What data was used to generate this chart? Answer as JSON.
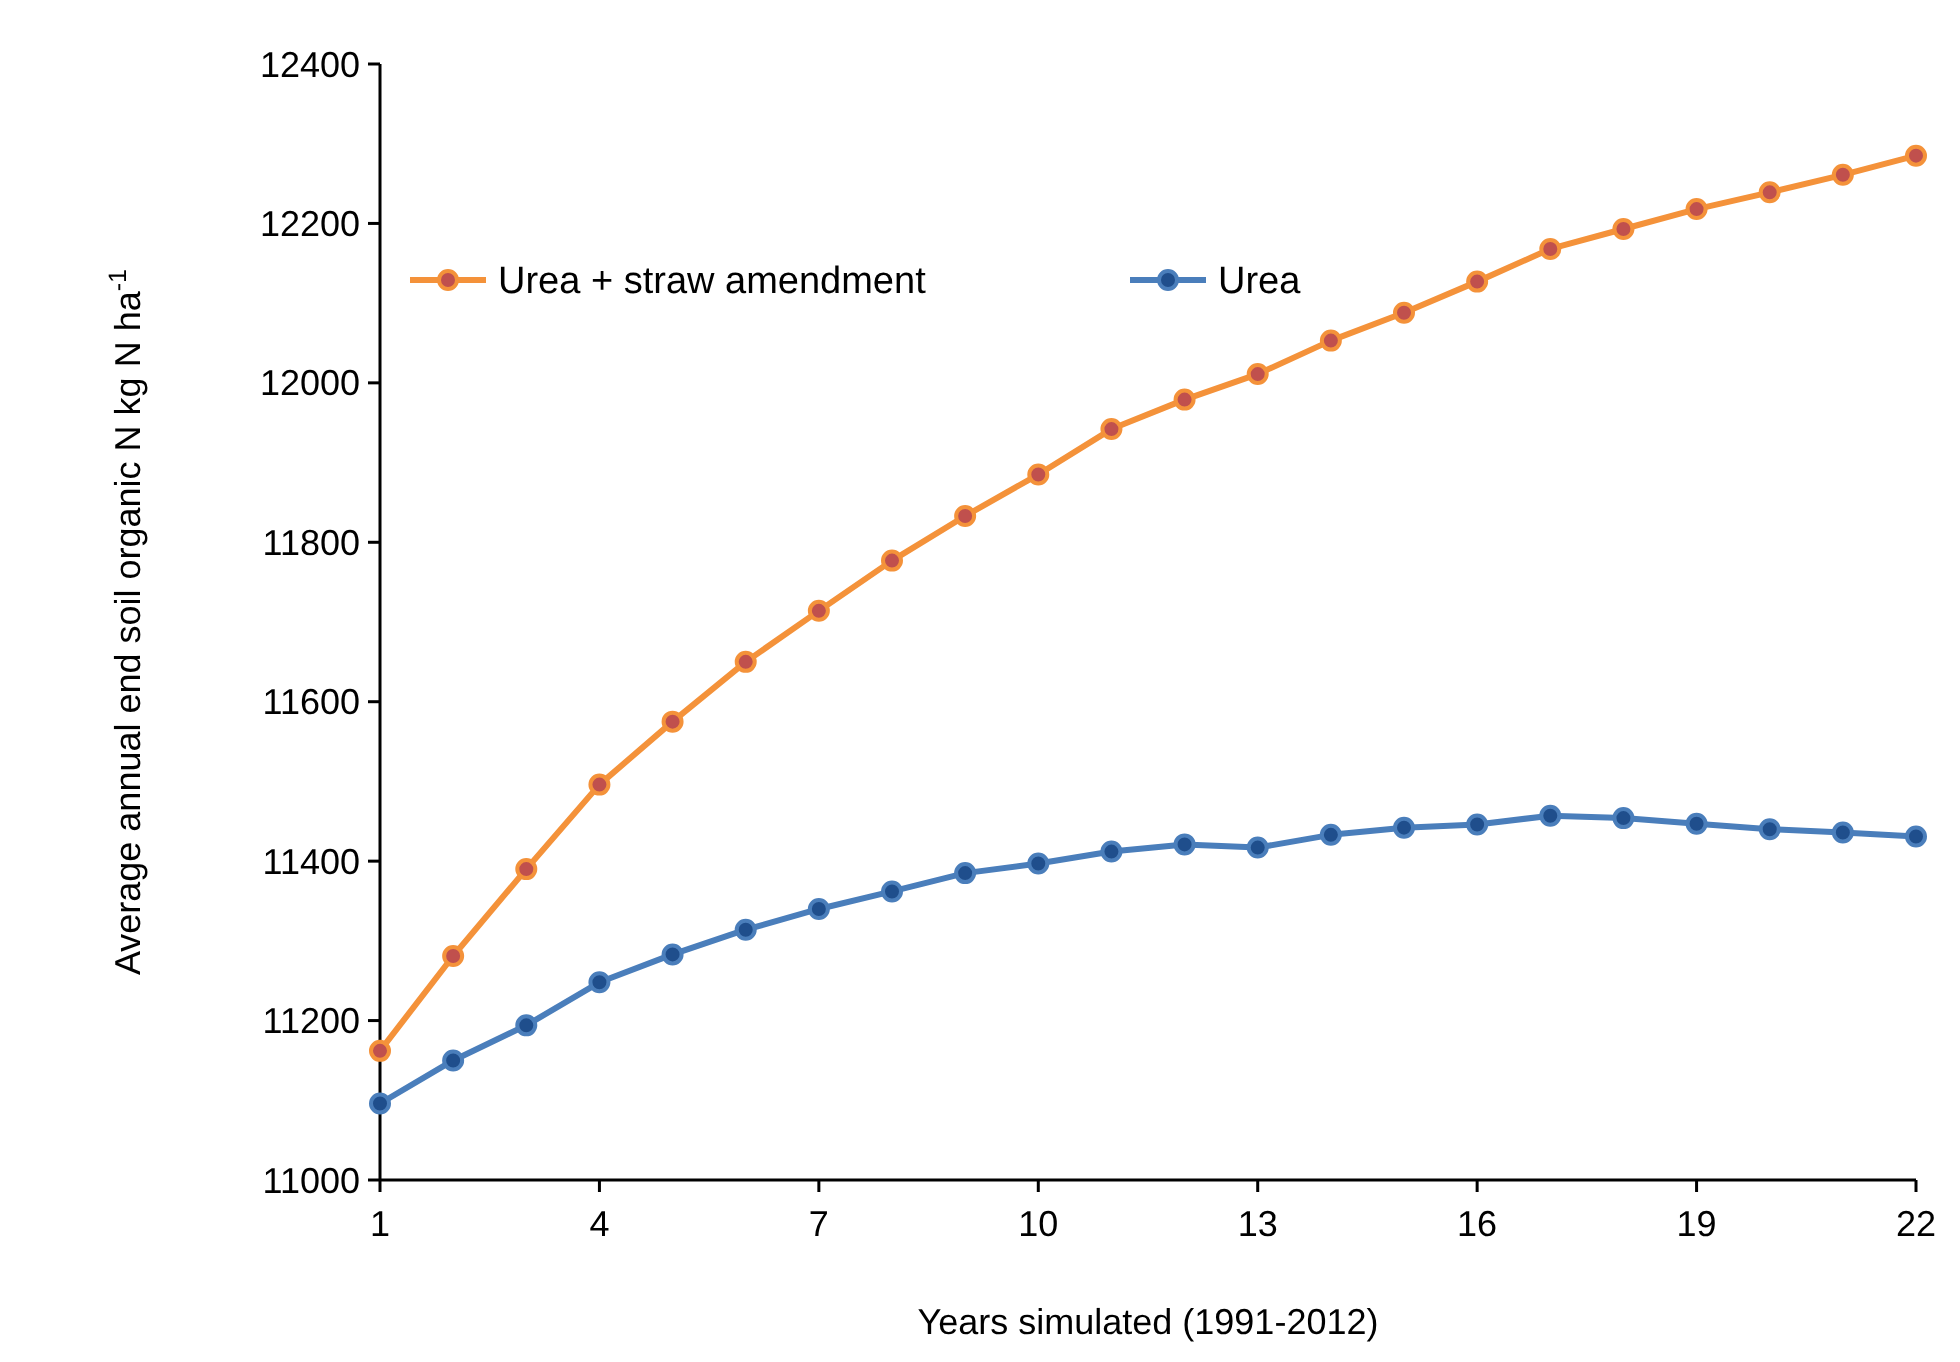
{
  "chart_data": {
    "type": "line",
    "xlabel": "Years simulated (1991-2012)",
    "ylabel": "Average annual end soil organic N kg N ha$^{-1}$",
    "x": [
      1,
      2,
      3,
      4,
      5,
      6,
      7,
      8,
      9,
      10,
      11,
      12,
      13,
      14,
      15,
      16,
      17,
      18,
      19,
      20,
      21,
      22
    ],
    "series": [
      {
        "name": "Urea + straw amendment",
        "color": "#f4923a",
        "values": [
          11162,
          11281,
          11390,
          11496,
          11575,
          11650,
          11714,
          11777,
          11833,
          11885,
          11942,
          11979,
          12011,
          12053,
          12088,
          12127,
          12168,
          12193,
          12218,
          12239,
          12261,
          12285
        ]
      },
      {
        "name": "Urea",
        "color": "#4a7ebb",
        "values": [
          11096,
          11150,
          11194,
          11248,
          11283,
          11314,
          11340,
          11362,
          11385,
          11397,
          11412,
          11421,
          11417,
          11433,
          11442,
          11446,
          11457,
          11454,
          11447,
          11440,
          11436,
          11431
        ]
      }
    ],
    "xlim": [
      1,
      22
    ],
    "xticks": [
      1,
      4,
      7,
      10,
      13,
      16,
      19,
      22
    ],
    "ylim": [
      11000,
      12400
    ],
    "yticks": [
      11000,
      11200,
      11400,
      11600,
      11800,
      12000,
      12200,
      12400
    ],
    "grid": false,
    "legend": "top left",
    "marker": "circle",
    "line_style": "solid"
  }
}
